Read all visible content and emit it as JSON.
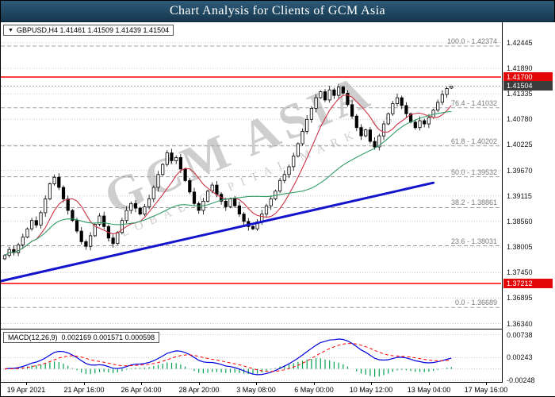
{
  "window": {
    "title": "Chart Analysis for Clients of GCM Asia"
  },
  "symbol_info": {
    "arrow": "▼",
    "text": "GBPUSD,H4 1.41461 1.41509 1.41439 1.41504"
  },
  "watermark": {
    "line1": "GCM ASIA",
    "line2": "GLOBAL CAPITAL MARKETS"
  },
  "indicator_label": {
    "name": "MACD(12,26,9)",
    "values": "0.002169 0.001571 0.000598"
  },
  "chart_data": {
    "type": "candlestick",
    "title": "Chart Analysis for Clients of GCM Asia",
    "symbol": "GBPUSD",
    "timeframe": "H4",
    "last_quote": {
      "open": 1.41461,
      "high": 1.41509,
      "low": 1.41439,
      "close": 1.41504
    },
    "current_price": 1.41504,
    "price_max": 1.42891,
    "price_min": 1.36228,
    "price_ticks": [
      1.42445,
      1.4189,
      1.41335,
      1.4078,
      1.40225,
      1.3967,
      1.39115,
      1.3856,
      1.38005,
      1.3745,
      1.36895,
      1.3634
    ],
    "first_open": 1.3775,
    "closes": [
      1.3782,
      1.3795,
      1.3788,
      1.3805,
      1.3822,
      1.384,
      1.3858,
      1.3848,
      1.3875,
      1.3905,
      1.3938,
      1.3952,
      1.393,
      1.3905,
      1.388,
      1.3858,
      1.3835,
      1.3812,
      1.3802,
      1.3825,
      1.385,
      1.3868,
      1.3845,
      1.382,
      1.3808,
      1.3832,
      1.3858,
      1.388,
      1.3895,
      1.3885,
      1.3872,
      1.3888,
      1.3905,
      1.393,
      1.3958,
      1.398,
      1.4005,
      1.3988,
      1.3995,
      1.397,
      1.3945,
      1.392,
      1.3895,
      1.388,
      1.39,
      1.3922,
      1.3935,
      1.3915,
      1.39,
      1.3888,
      1.3905,
      1.389,
      1.3872,
      1.3856,
      1.3845,
      1.384,
      1.3855,
      1.3872,
      1.389,
      1.3905,
      1.3922,
      1.3945,
      1.3958,
      1.3975,
      1.3998,
      1.4025,
      1.4052,
      1.4078,
      1.4102,
      1.4125,
      1.4138,
      1.412,
      1.4142,
      1.413,
      1.4148,
      1.4135,
      1.411,
      1.4085,
      1.406,
      1.4042,
      1.4055,
      1.403,
      1.4018,
      1.4042,
      1.4068,
      1.409,
      1.4112,
      1.4125,
      1.4108,
      1.409,
      1.4072,
      1.406,
      1.4075,
      1.4068,
      1.4082,
      1.4098,
      1.4115,
      1.4132,
      1.4145,
      1.41504
    ],
    "hlines": [
      {
        "price": 1.417,
        "color": "#ff0000",
        "tag_bg": "#e40707",
        "role": "resistance"
      },
      {
        "price": 1.37212,
        "color": "#ff0000",
        "tag_bg": "#e40707",
        "role": "support"
      }
    ],
    "current_tag_bg": "#3c3c3c",
    "fibonacci": {
      "levels": [
        {
          "label": "100.0",
          "price": 1.42374
        },
        {
          "label": "76.4",
          "price": 1.41032
        },
        {
          "label": "61.8",
          "price": 1.40202
        },
        {
          "label": "50.0",
          "price": 1.39532
        },
        {
          "label": "38.2",
          "price": 1.38861
        },
        {
          "label": "23.6",
          "price": 1.38031
        },
        {
          "label": "0.0",
          "price": 1.36689
        }
      ]
    },
    "trendline": {
      "i1": -1,
      "p1": 1.3726,
      "i2": 95,
      "p2": 1.394,
      "color": "#1414cc"
    },
    "moving_averages": [
      {
        "period": 8,
        "color": "#cc3344"
      },
      {
        "period": 30,
        "color": "#2f9e68"
      }
    ],
    "macd": {
      "fast": 12,
      "slow": 26,
      "signal": 9,
      "line_color": "#0000e0",
      "signal_color": "#ff0000",
      "hist_color": "#00a050",
      "ticks": [
        0.00738,
        0.00243,
        -0.00248
      ],
      "ymax": 0.0085,
      "ymin": -0.0028,
      "last_values": [
        0.002169,
        0.001571,
        0.000598
      ]
    },
    "x_labels": [
      "19 Apr 2021",
      "21 Apr 16:00",
      "26 Apr 04:00",
      "28 Apr 20:00",
      "3 May 08:00",
      "6 May 00:00",
      "10 May 12:00",
      "13 May 04:00",
      "17 May 16:00"
    ]
  }
}
